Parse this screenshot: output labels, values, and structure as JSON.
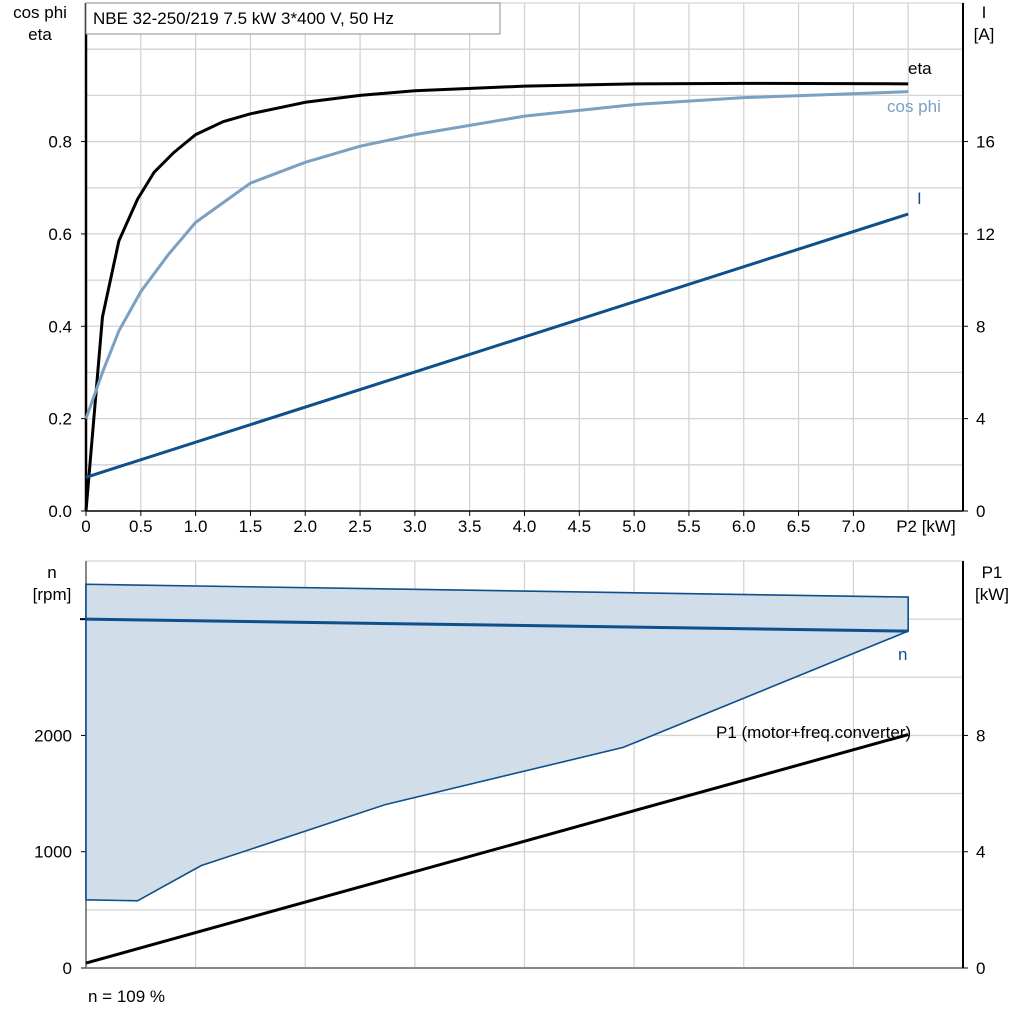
{
  "title": "NBE 32-250/219   7.5 kW   3*400 V, 50 Hz",
  "footer": "n = 109 %",
  "colors": {
    "eta": "#000000",
    "cos_phi": "#7aa0c2",
    "current": "#0e4f8c",
    "speed_band_fill": "#d1dde8",
    "speed_line": "#0e4f8c",
    "p1": "#000000"
  },
  "chart_data": [
    {
      "type": "line",
      "xlabel": "P2 [kW]",
      "x_ticks": [
        "0",
        "0.5",
        "1.0",
        "1.5",
        "2.0",
        "2.5",
        "3.0",
        "3.5",
        "4.0",
        "4.5",
        "5.0",
        "5.5",
        "6.0",
        "6.5",
        "7.0"
      ],
      "xlim": [
        0,
        8
      ],
      "ylabel_left": [
        "cos phi",
        "eta"
      ],
      "y_ticks_left": [
        "0.0",
        "0.2",
        "0.4",
        "0.6",
        "0.8"
      ],
      "ylim_left": [
        0,
        1.1
      ],
      "ylabel_right": [
        "I",
        "[A]"
      ],
      "y_ticks_right": [
        "0",
        "4",
        "8",
        "12",
        "16"
      ],
      "ylim_right": [
        0,
        22
      ],
      "grid": true,
      "series": [
        {
          "name": "eta",
          "axis": "left",
          "x": [
            0,
            0.15,
            0.3,
            0.47,
            0.62,
            0.8,
            1.0,
            1.25,
            1.5,
            2.0,
            2.5,
            3.0,
            4.0,
            5.0,
            6.0,
            7.5
          ],
          "y": [
            0,
            0.42,
            0.585,
            0.675,
            0.733,
            0.776,
            0.815,
            0.843,
            0.86,
            0.885,
            0.9,
            0.91,
            0.92,
            0.925,
            0.926,
            0.925
          ]
        },
        {
          "name": "cos phi",
          "axis": "left",
          "x": [
            0,
            0.15,
            0.3,
            0.5,
            0.75,
            1.0,
            1.5,
            2.0,
            2.5,
            3.0,
            4.0,
            5.0,
            6.0,
            7.5
          ],
          "y": [
            0.2,
            0.3,
            0.39,
            0.475,
            0.555,
            0.625,
            0.71,
            0.755,
            0.79,
            0.815,
            0.855,
            0.88,
            0.895,
            0.908
          ]
        },
        {
          "name": "I",
          "axis": "right",
          "x": [
            0,
            7.5
          ],
          "y": [
            1.46,
            12.86
          ]
        }
      ]
    },
    {
      "type": "area",
      "footer": "n = 109 %",
      "xlim": [
        0,
        8
      ],
      "ylabel_left": [
        "n",
        "[rpm]"
      ],
      "y_ticks_left": [
        "0",
        "1000",
        "2000"
      ],
      "ylim_left": [
        0,
        3500
      ],
      "ylabel_right": [
        "P1",
        "[kW]"
      ],
      "y_ticks_right": [
        "0",
        "4",
        "8"
      ],
      "ylim_right": [
        0,
        14
      ],
      "grid": true,
      "band_upper": {
        "x": [
          0,
          7.5
        ],
        "y": [
          3300,
          3190
        ]
      },
      "band_lower": {
        "x": [
          0,
          0.47,
          1.05,
          2.73,
          4.9,
          7.5
        ],
        "y": [
          586,
          578,
          880,
          1405,
          1897,
          2897
        ]
      },
      "series": [
        {
          "name": "n",
          "axis": "left",
          "x": [
            0,
            7.5
          ],
          "y": [
            3000,
            2897
          ]
        },
        {
          "name": "P1 (motor+freq.converter)",
          "axis": "right",
          "x": [
            0,
            7.5
          ],
          "y": [
            0.17,
            8.03
          ]
        }
      ]
    }
  ]
}
